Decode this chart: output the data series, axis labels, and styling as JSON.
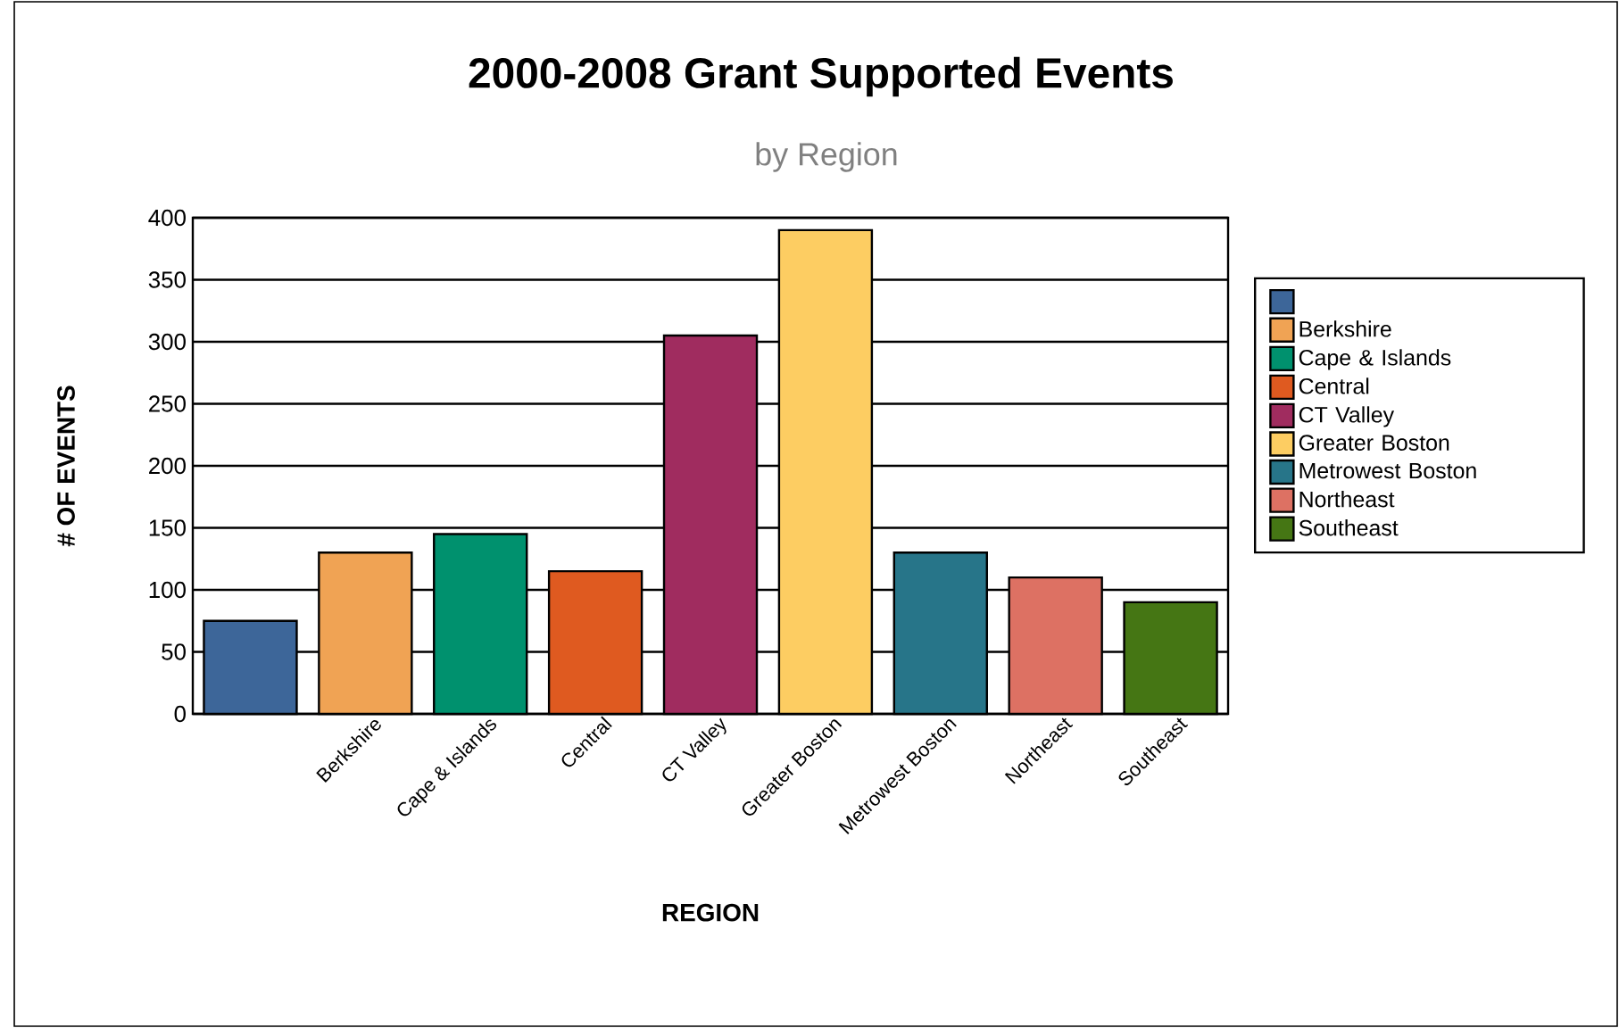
{
  "chart_data": {
    "type": "bar",
    "title": "2000-2008 Grant Supported Events",
    "subtitle": "by Region",
    "xlabel": "REGION",
    "ylabel": "# OF EVENTS",
    "categories": [
      null,
      "Berkshire",
      "Cape & Islands",
      "Central",
      "CT Valley",
      "Greater Boston",
      "Metrowest Boston",
      "Northeast",
      "Southeast"
    ],
    "stacked": true,
    "series": [
      {
        "color": "#3d6699",
        "values": [
          75,
          null,
          null,
          null,
          null,
          null,
          null,
          null,
          null
        ]
      },
      {
        "name": "Berkshire",
        "color": "#f0a354",
        "values": [
          null,
          130,
          null,
          null,
          null,
          null,
          null,
          null,
          null
        ]
      },
      {
        "name": "Cape & Islands",
        "color": "#00916e",
        "values": [
          null,
          null,
          145,
          null,
          null,
          null,
          null,
          null,
          null
        ]
      },
      {
        "name": "Central",
        "color": "#df5a20",
        "values": [
          null,
          null,
          null,
          115,
          null,
          null,
          null,
          null,
          null
        ]
      },
      {
        "name": "CT Valley",
        "color": "#a02c5f",
        "values": [
          null,
          null,
          null,
          null,
          305,
          null,
          null,
          null,
          null
        ]
      },
      {
        "name": "Greater Boston",
        "color": "#fdcd62",
        "values": [
          null,
          null,
          null,
          null,
          null,
          390,
          null,
          null,
          null
        ]
      },
      {
        "name": "Metrowest Boston",
        "color": "#277589",
        "values": [
          null,
          null,
          null,
          null,
          null,
          null,
          130,
          null,
          null
        ]
      },
      {
        "name": "Northeast",
        "color": "#dd7163",
        "values": [
          null,
          null,
          null,
          null,
          null,
          null,
          null,
          110,
          null
        ]
      },
      {
        "name": "Southeast",
        "color": "#457614",
        "values": [
          null,
          null,
          null,
          null,
          null,
          null,
          null,
          null,
          90
        ]
      }
    ],
    "ylim": [
      0,
      400
    ],
    "yticks": [
      0,
      50,
      100,
      150,
      200,
      250,
      300,
      350,
      400
    ],
    "grid": "y",
    "legend": "right"
  }
}
